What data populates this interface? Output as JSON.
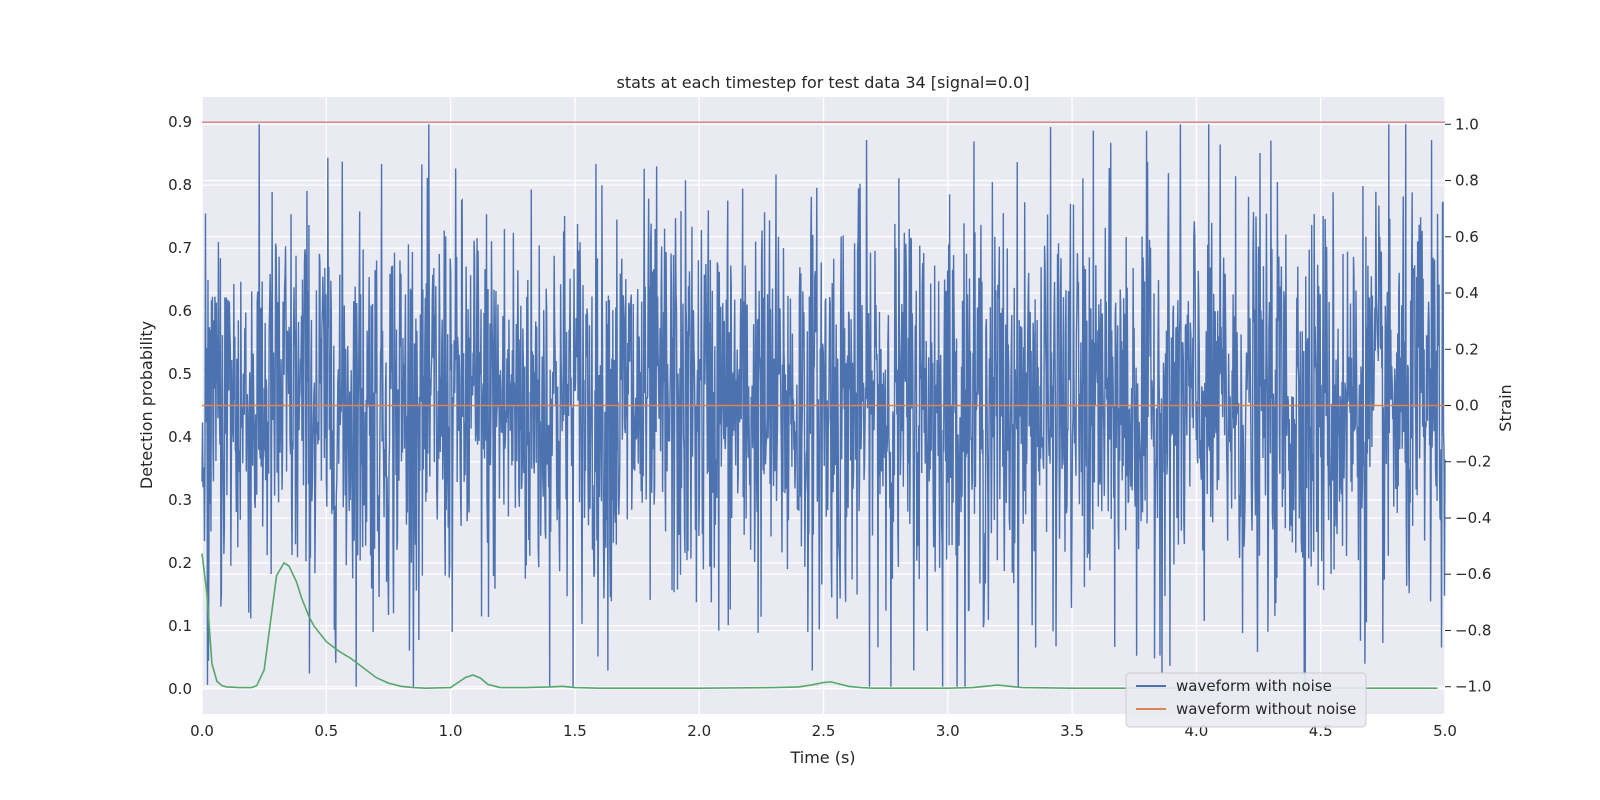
{
  "chart_data": {
    "type": "line",
    "title": "stats at each timestep for test data 34 [signal=0.0]",
    "xlabel": "Time (s)",
    "ylabel_left": "Detection probability",
    "ylabel_right": "Strain",
    "xlim": [
      0.0,
      5.0
    ],
    "ylim_left": [
      -0.04,
      0.94
    ],
    "ylim_right": [
      -1.097,
      1.097
    ],
    "x_ticks": [
      0.0,
      0.5,
      1.0,
      1.5,
      2.0,
      2.5,
      3.0,
      3.5,
      4.0,
      4.5,
      5.0
    ],
    "x_tick_labels": [
      "0.0",
      "0.5",
      "1.0",
      "1.5",
      "2.0",
      "2.5",
      "3.0",
      "3.5",
      "4.0",
      "4.5",
      "5.0"
    ],
    "y_left_ticks": [
      0.0,
      0.1,
      0.2,
      0.3,
      0.4,
      0.5,
      0.6,
      0.7,
      0.8,
      0.9
    ],
    "y_left_tick_labels": [
      "0.0",
      "0.1",
      "0.2",
      "0.3",
      "0.4",
      "0.5",
      "0.6",
      "0.7",
      "0.8",
      "0.9"
    ],
    "y_right_ticks": [
      -1.0,
      -0.8,
      -0.6,
      -0.4,
      -0.2,
      0.0,
      0.2,
      0.4,
      0.6,
      0.8,
      1.0
    ],
    "y_right_tick_labels": [
      "−1.0",
      "−0.8",
      "−0.6",
      "−0.4",
      "−0.2",
      "0.0",
      "0.2",
      "0.4",
      "0.6",
      "0.8",
      "1.0"
    ],
    "grid": true,
    "legend_position": "lower right",
    "series": [
      {
        "name": "waveform with noise",
        "axis": "right",
        "color": "#4c72b0",
        "kind": "noise",
        "x_range": [
          0.0,
          5.0
        ],
        "y_range": [
          -1.0,
          1.0
        ]
      },
      {
        "name": "waveform without noise",
        "axis": "right",
        "color": "#dd8452",
        "kind": "line",
        "x": [
          0.0,
          5.0
        ],
        "y": [
          0.0,
          0.0
        ]
      },
      {
        "axis": "left",
        "color": "#55a868",
        "kind": "line",
        "x": [
          0.0,
          0.02,
          0.04,
          0.06,
          0.08,
          0.1,
          0.15,
          0.2,
          0.22,
          0.25,
          0.28,
          0.3,
          0.33,
          0.35,
          0.38,
          0.4,
          0.43,
          0.45,
          0.5,
          0.55,
          0.6,
          0.65,
          0.7,
          0.75,
          0.8,
          0.85,
          0.9,
          1.0,
          1.03,
          1.06,
          1.09,
          1.12,
          1.15,
          1.2,
          1.3,
          1.4,
          1.45,
          1.5,
          1.6,
          2.0,
          2.3,
          2.4,
          2.45,
          2.5,
          2.53,
          2.56,
          2.6,
          2.65,
          2.7,
          3.0,
          3.1,
          3.15,
          3.2,
          3.25,
          3.3,
          3.5,
          4.0,
          4.5,
          4.97
        ],
        "y": [
          0.215,
          0.15,
          0.04,
          0.012,
          0.005,
          0.003,
          0.002,
          0.002,
          0.005,
          0.03,
          0.12,
          0.18,
          0.2,
          0.195,
          0.17,
          0.145,
          0.115,
          0.1,
          0.075,
          0.06,
          0.048,
          0.033,
          0.018,
          0.009,
          0.004,
          0.002,
          0.001,
          0.002,
          0.01,
          0.018,
          0.022,
          0.017,
          0.007,
          0.002,
          0.002,
          0.003,
          0.004,
          0.002,
          0.001,
          0.001,
          0.002,
          0.003,
          0.006,
          0.01,
          0.011,
          0.008,
          0.004,
          0.002,
          0.001,
          0.001,
          0.002,
          0.004,
          0.006,
          0.004,
          0.002,
          0.001,
          0.001,
          0.001,
          0.001
        ]
      },
      {
        "axis": "left",
        "color": "#c44e52",
        "kind": "line",
        "x": [
          0.0,
          5.0
        ],
        "y": [
          0.9,
          0.9
        ]
      }
    ]
  }
}
